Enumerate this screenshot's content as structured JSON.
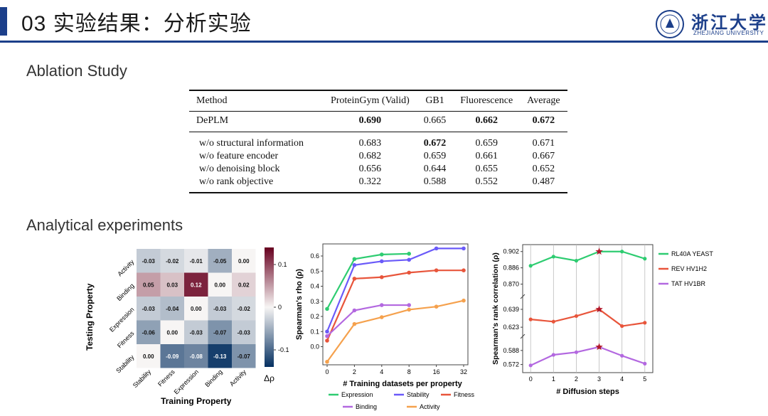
{
  "header": {
    "title": "03 实验结果：分析实验",
    "logo_text": "浙江大学",
    "logo_sub": "ZHEJIANG UNIVERSITY"
  },
  "sections": {
    "ablation": "Ablation Study",
    "analytical": "Analytical experiments"
  },
  "table": {
    "columns": [
      "Method",
      "ProteinGym (Valid)",
      "GB1",
      "Fluorescence",
      "Average"
    ],
    "main_row": {
      "method": "DePLM",
      "values": [
        "0.690",
        "0.665",
        "0.662",
        "0.672"
      ],
      "bold": [
        true,
        false,
        true,
        true
      ]
    },
    "rows": [
      {
        "method": "w/o structural information",
        "values": [
          "0.683",
          "0.672",
          "0.659",
          "0.671"
        ],
        "bold": [
          false,
          true,
          false,
          false
        ]
      },
      {
        "method": "w/o feature encoder",
        "values": [
          "0.682",
          "0.659",
          "0.661",
          "0.667"
        ],
        "bold": [
          false,
          false,
          false,
          false
        ]
      },
      {
        "method": "w/o denoising block",
        "values": [
          "0.656",
          "0.644",
          "0.655",
          "0.652"
        ],
        "bold": [
          false,
          false,
          false,
          false
        ]
      },
      {
        "method": "w/o rank objective",
        "values": [
          "0.322",
          "0.588",
          "0.552",
          "0.487"
        ],
        "bold": [
          false,
          false,
          false,
          false
        ]
      }
    ]
  },
  "chart_data": [
    {
      "type": "heatmap",
      "xlabel": "Training Property",
      "ylabel": "Testing Property",
      "x_categories": [
        "Stability",
        "Fitness",
        "Expression",
        "Binding",
        "Activity"
      ],
      "y_categories": [
        "Activity",
        "Binding",
        "Expression",
        "Fitness",
        "Stability"
      ],
      "values": [
        [
          -0.03,
          -0.02,
          -0.01,
          -0.05,
          0.0
        ],
        [
          0.05,
          0.03,
          0.12,
          0.0,
          0.02
        ],
        [
          -0.03,
          -0.04,
          0.0,
          -0.03,
          -0.02
        ],
        [
          -0.06,
          0.0,
          -0.03,
          -0.07,
          -0.03
        ],
        [
          0.0,
          -0.09,
          -0.08,
          -0.13,
          -0.07
        ]
      ],
      "labels": [
        [
          "-0.03",
          "-0.02",
          "-0.01",
          "-0.05",
          "0.00"
        ],
        [
          "0.05",
          "0.03",
          "0.12",
          "0.00",
          "0.02"
        ],
        [
          "-0.03",
          "-0.04",
          "0.00",
          "-0.03",
          "-0.02"
        ],
        [
          "-0.06",
          "0.00",
          "-0.03",
          "-0.07",
          "-0.03"
        ],
        [
          "0.00",
          "-0.09",
          "-0.08",
          "-0.13",
          "-0.07"
        ]
      ],
      "colorbar": {
        "ticks": [
          "0.1",
          "0",
          "-0.1"
        ],
        "tick_values": [
          0.1,
          0,
          -0.1
        ],
        "range": [
          -0.14,
          0.14
        ],
        "label": "Δρ"
      }
    },
    {
      "type": "line",
      "xlabel": "#  Training datasets per property",
      "ylabel": "Spearman's rho (ρ)",
      "x_ticks": [
        "0",
        "2",
        "4",
        "8",
        "16",
        "32"
      ],
      "y_ticks": [
        "0.0",
        "0.1",
        "0.2",
        "0.3",
        "0.4",
        "0.5",
        "0.6"
      ],
      "ylim": [
        -0.12,
        0.68
      ],
      "series": [
        {
          "name": "Expression",
          "color": "#2ecc71",
          "y": [
            0.25,
            0.58,
            0.61,
            0.615,
            null,
            null
          ]
        },
        {
          "name": "Stability",
          "color": "#6a5af9",
          "y": [
            0.1,
            0.54,
            0.565,
            0.575,
            0.65,
            0.65
          ]
        },
        {
          "name": "Fitness",
          "color": "#e8553b",
          "y": [
            0.04,
            0.45,
            0.46,
            0.49,
            0.505,
            0.505
          ]
        },
        {
          "name": "Binding",
          "color": "#b368e0",
          "y": [
            0.07,
            0.24,
            0.275,
            0.275,
            null,
            null
          ]
        },
        {
          "name": "Activity",
          "color": "#f5a14d",
          "y": [
            -0.1,
            0.15,
            0.195,
            0.245,
            0.265,
            0.305
          ]
        }
      ]
    },
    {
      "type": "line",
      "xlabel": "# Diffusion steps",
      "ylabel": "Spearman's rank correlation (ρ)",
      "x": [
        0,
        1,
        2,
        3,
        4,
        5
      ],
      "y_ticks": [
        "0.902",
        "0.886",
        "0.870",
        "0.639",
        "0.623",
        "0.588",
        "0.572"
      ],
      "y_tick_values": [
        0.902,
        0.886,
        0.87,
        0.639,
        0.623,
        0.588,
        0.572
      ],
      "series": [
        {
          "name": "RL40A YEAST",
          "color": "#2ecc71",
          "y": [
            0.888,
            0.897,
            0.893,
            0.902,
            0.902,
            0.895
          ],
          "best_index": 3
        },
        {
          "name": "REV HV1H2",
          "color": "#e8553b",
          "y": [
            0.63,
            0.628,
            0.633,
            0.639,
            0.624,
            0.627
          ],
          "best_index": 3
        },
        {
          "name": "TAT HV1BR",
          "color": "#b368e0",
          "y": [
            0.571,
            0.583,
            0.586,
            0.592,
            0.582,
            0.573
          ],
          "best_index": 3
        }
      ]
    }
  ]
}
